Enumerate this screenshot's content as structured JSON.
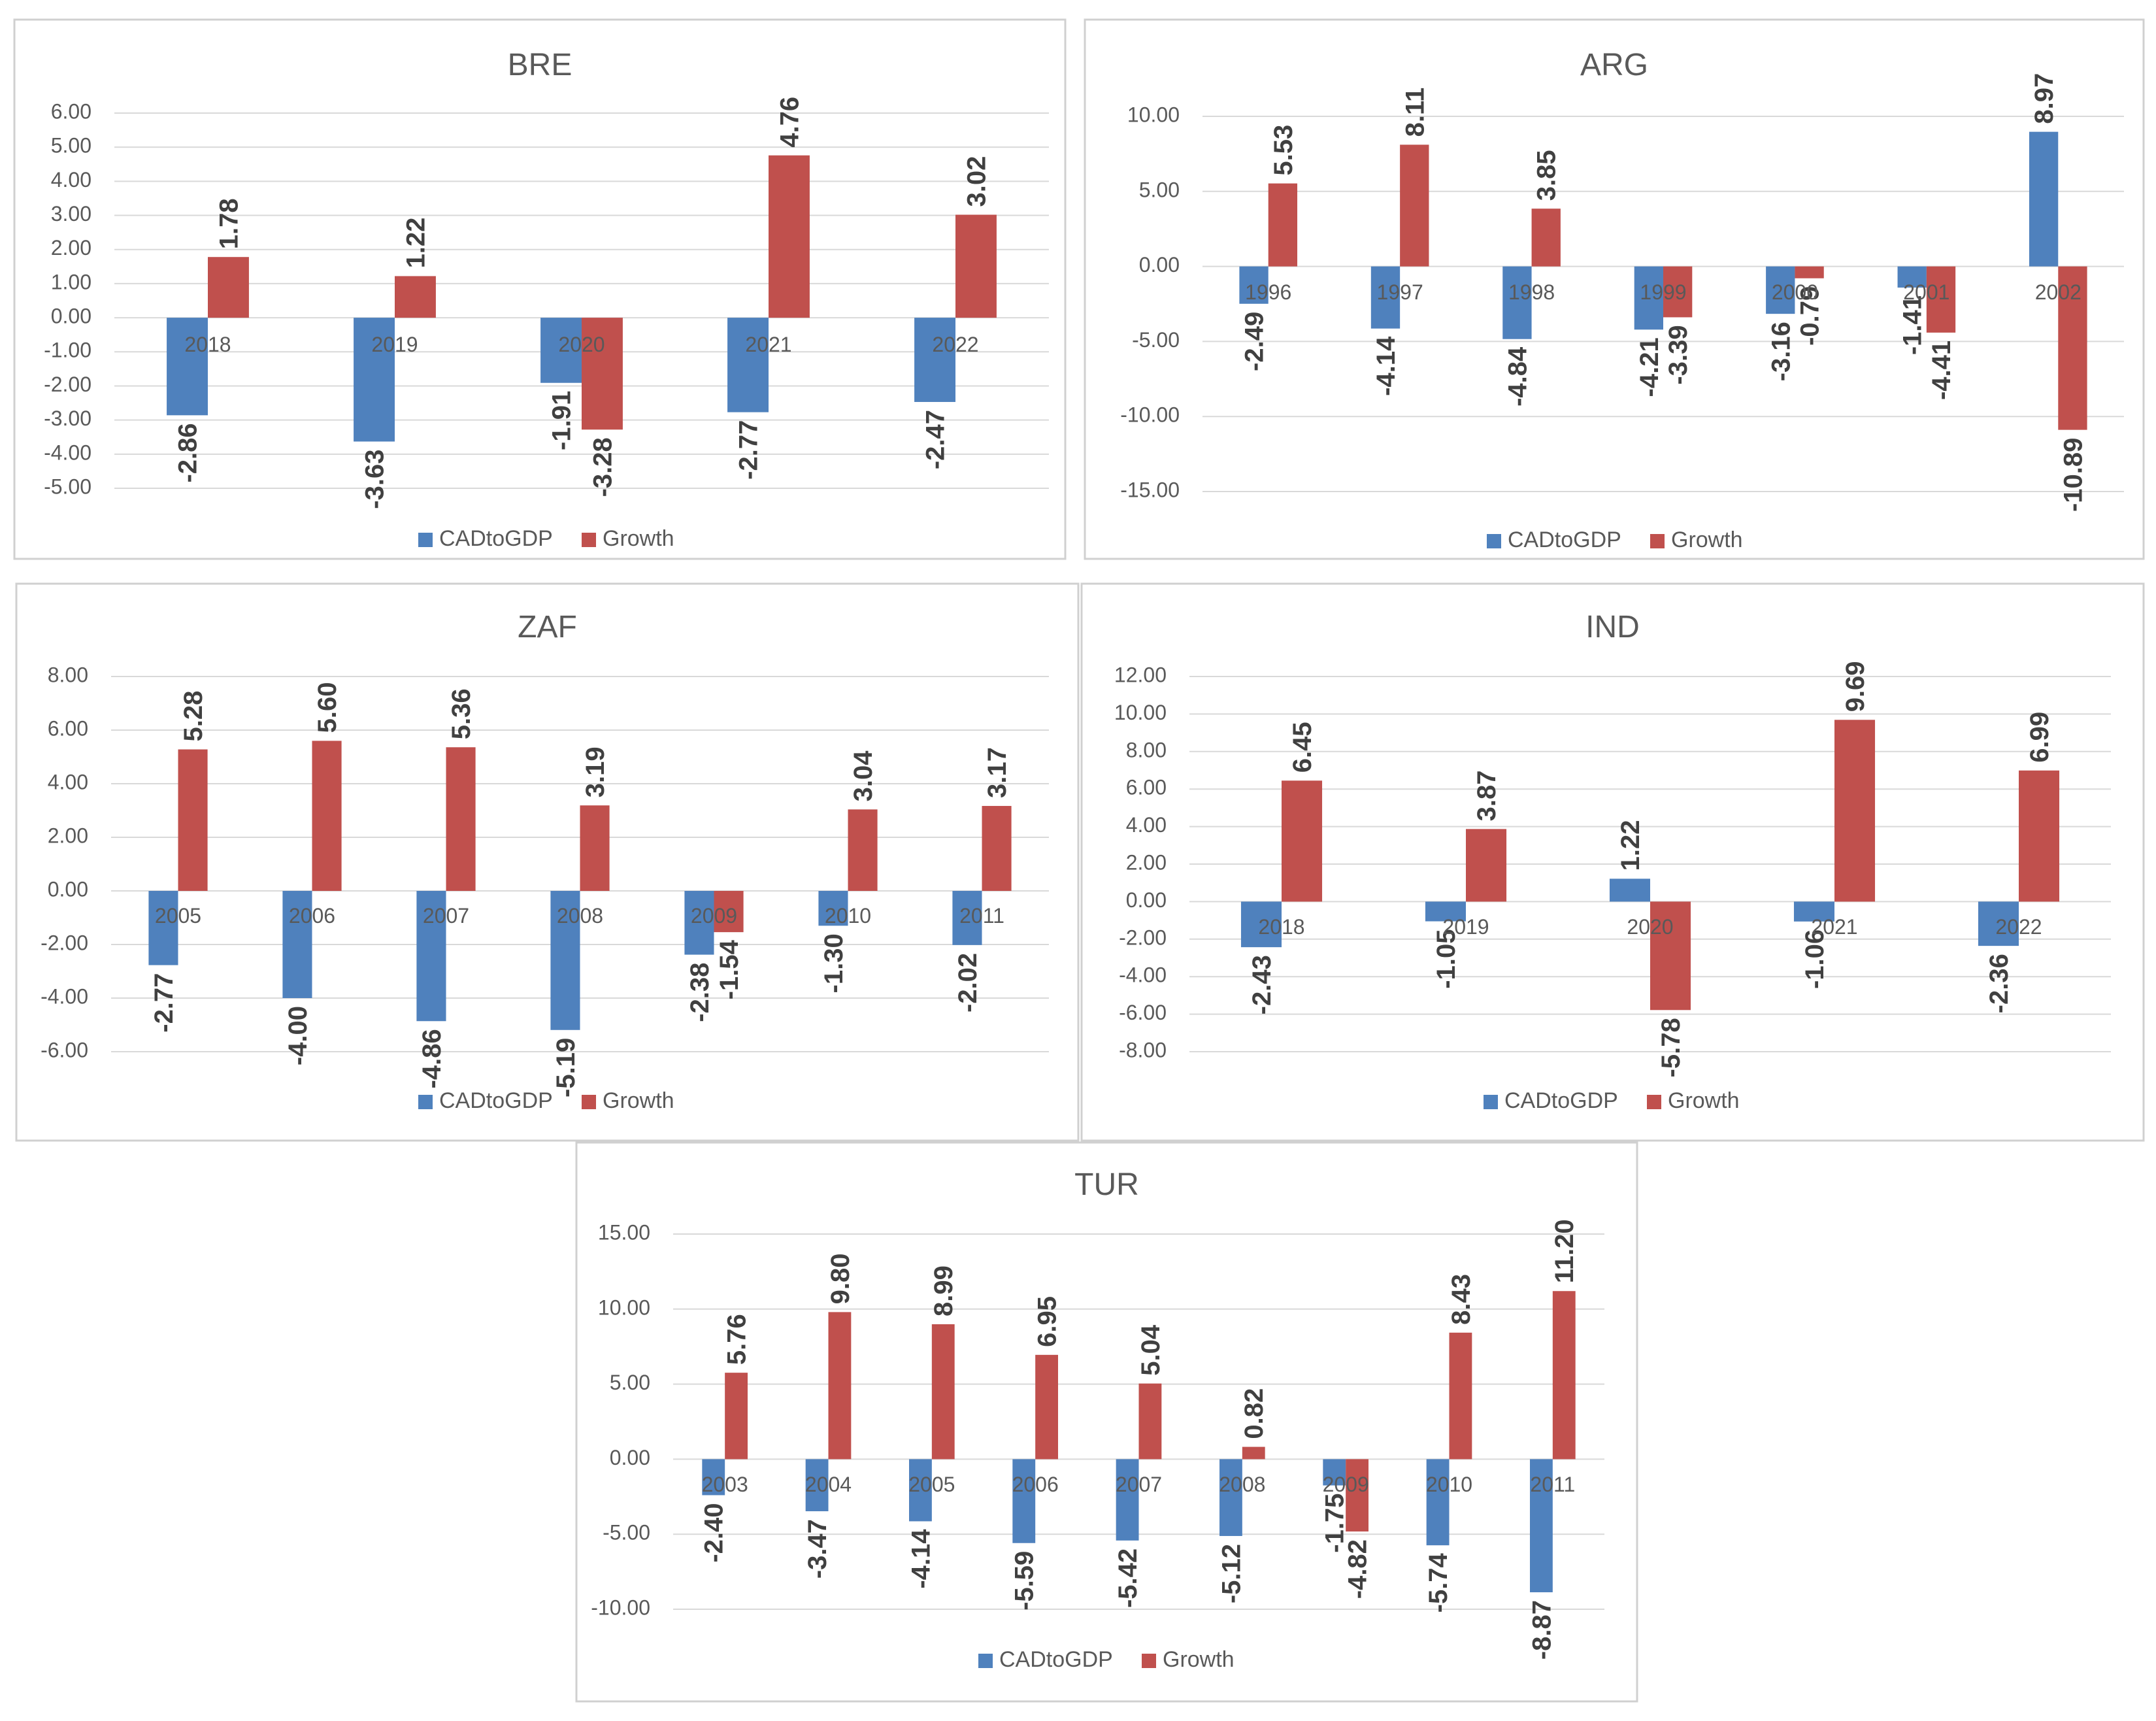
{
  "colors": {
    "cad": "#4f81bd",
    "growth": "#c0504d"
  },
  "legend": {
    "cad": "CADtoGDP",
    "growth": "Growth"
  },
  "chart_data": [
    {
      "type": "bar",
      "title": "BRE",
      "categories": [
        "2018",
        "2019",
        "2020",
        "2021",
        "2022"
      ],
      "series": [
        {
          "name": "CADtoGDP",
          "values": [
            -2.86,
            -3.63,
            -1.91,
            -2.77,
            -2.47
          ]
        },
        {
          "name": "Growth",
          "values": [
            1.78,
            1.22,
            -3.28,
            4.76,
            3.02
          ]
        }
      ],
      "ylim": [
        -5,
        6
      ],
      "yticks": [
        "6.00",
        "5.00",
        "4.00",
        "3.00",
        "2.00",
        "1.00",
        "0.00",
        "-1.00",
        "-2.00",
        "-3.00",
        "-4.00",
        "-5.00"
      ],
      "yticks_values": [
        6,
        5,
        4,
        3,
        2,
        1,
        0,
        -1,
        -2,
        -3,
        -4,
        -5
      ],
      "legend": "bottom"
    },
    {
      "type": "bar",
      "title": "ARG",
      "categories": [
        "1996",
        "1997",
        "1998",
        "1999",
        "2000",
        "2001",
        "2002"
      ],
      "series": [
        {
          "name": "CADtoGDP",
          "values": [
            -2.49,
            -4.14,
            -4.84,
            -4.21,
            -3.16,
            -1.41,
            8.97
          ]
        },
        {
          "name": "Growth",
          "values": [
            5.53,
            8.11,
            3.85,
            -3.39,
            -0.79,
            -4.41,
            -10.89
          ]
        }
      ],
      "ylim": [
        -15,
        10
      ],
      "yticks": [
        "10.00",
        "5.00",
        "0.00",
        "-5.00",
        "-10.00",
        "-15.00"
      ],
      "yticks_values": [
        10,
        5,
        0,
        -5,
        -10,
        -15
      ],
      "legend": "bottom"
    },
    {
      "type": "bar",
      "title": "ZAF",
      "categories": [
        "2005",
        "2006",
        "2007",
        "2008",
        "2009",
        "2010",
        "2011"
      ],
      "series": [
        {
          "name": "CADtoGDP",
          "values": [
            -2.77,
            -4.0,
            -4.86,
            -5.19,
            -2.38,
            -1.3,
            -2.02
          ]
        },
        {
          "name": "Growth",
          "values": [
            5.28,
            5.6,
            5.36,
            3.19,
            -1.54,
            3.04,
            3.17
          ]
        }
      ],
      "ylim": [
        -6,
        8
      ],
      "yticks": [
        "8.00",
        "6.00",
        "4.00",
        "2.00",
        "0.00",
        "-2.00",
        "-4.00",
        "-6.00"
      ],
      "yticks_values": [
        8,
        6,
        4,
        2,
        0,
        -2,
        -4,
        -6
      ],
      "legend": "bottom"
    },
    {
      "type": "bar",
      "title": "IND",
      "categories": [
        "2018",
        "2019",
        "2020",
        "2021",
        "2022"
      ],
      "series": [
        {
          "name": "CADtoGDP",
          "values": [
            -2.43,
            -1.05,
            1.22,
            -1.06,
            -2.36
          ]
        },
        {
          "name": "Growth",
          "values": [
            6.45,
            3.87,
            -5.78,
            9.69,
            6.99
          ]
        }
      ],
      "ylim": [
        -8,
        12
      ],
      "yticks": [
        "12.00",
        "10.00",
        "8.00",
        "6.00",
        "4.00",
        "2.00",
        "0.00",
        "-2.00",
        "-4.00",
        "-6.00",
        "-8.00"
      ],
      "yticks_values": [
        12,
        10,
        8,
        6,
        4,
        2,
        0,
        -2,
        -4,
        -6,
        -8
      ],
      "legend": "bottom"
    },
    {
      "type": "bar",
      "title": "TUR",
      "categories": [
        "2003",
        "2004",
        "2005",
        "2006",
        "2007",
        "2008",
        "2009",
        "2010",
        "2011"
      ],
      "series": [
        {
          "name": "CADtoGDP",
          "values": [
            -2.4,
            -3.47,
            -4.14,
            -5.59,
            -5.42,
            -5.12,
            -1.75,
            -5.74,
            -8.87
          ]
        },
        {
          "name": "Growth",
          "values": [
            5.76,
            9.8,
            8.99,
            6.95,
            5.04,
            0.82,
            -4.82,
            8.43,
            11.2
          ]
        }
      ],
      "ylim": [
        -10,
        15
      ],
      "yticks": [
        "15.00",
        "10.00",
        "5.00",
        "0.00",
        "-5.00",
        "-10.00"
      ],
      "yticks_values": [
        15,
        10,
        5,
        0,
        -5,
        -10
      ],
      "legend": "bottom"
    }
  ]
}
